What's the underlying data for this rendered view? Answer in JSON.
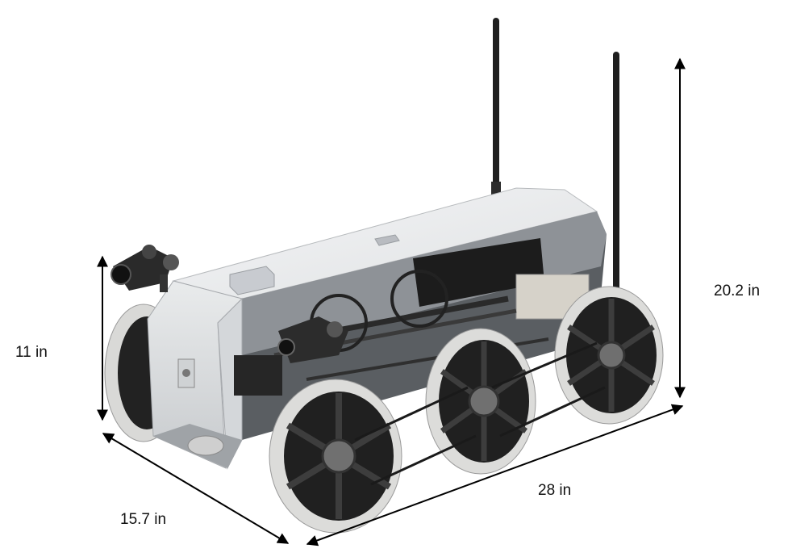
{
  "figure": {
    "subject": "Six-wheeled inspection robot with dual antennas and front camera",
    "dimensions": {
      "body_height": "11 in",
      "width": "15.7 in",
      "length": "28 in",
      "overall_height": "20.2 in"
    }
  },
  "colors": {
    "body": "#e4e6e8",
    "body_shade": "#c9ccd0",
    "dark": "#1e1e1e",
    "tire": "#d8d8d6",
    "rim": "#232323",
    "arrow": "#000000"
  }
}
